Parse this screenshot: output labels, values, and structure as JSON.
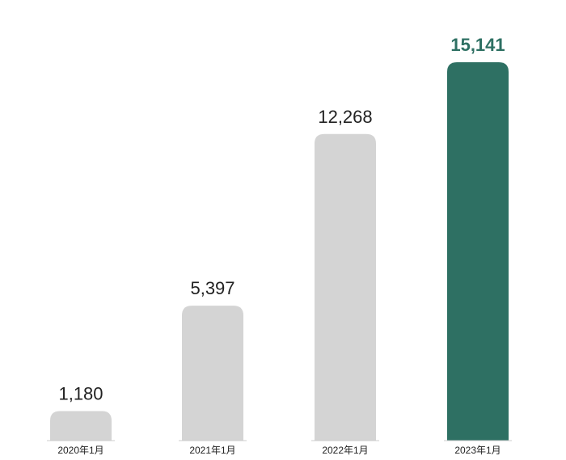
{
  "chart_data": {
    "type": "bar",
    "categories": [
      "2020年1月",
      "2021年1月",
      "2022年1月",
      "2023年1月"
    ],
    "values": [
      1180,
      5397,
      12268,
      15141
    ],
    "value_labels": [
      "1,180",
      "5,397",
      "12,268",
      "15,141"
    ],
    "colors": [
      "#d4d4d4",
      "#d4d4d4",
      "#d4d4d4",
      "#2e7063"
    ],
    "label_colors": [
      "#222222",
      "#222222",
      "#222222",
      "#2e7063"
    ]
  }
}
